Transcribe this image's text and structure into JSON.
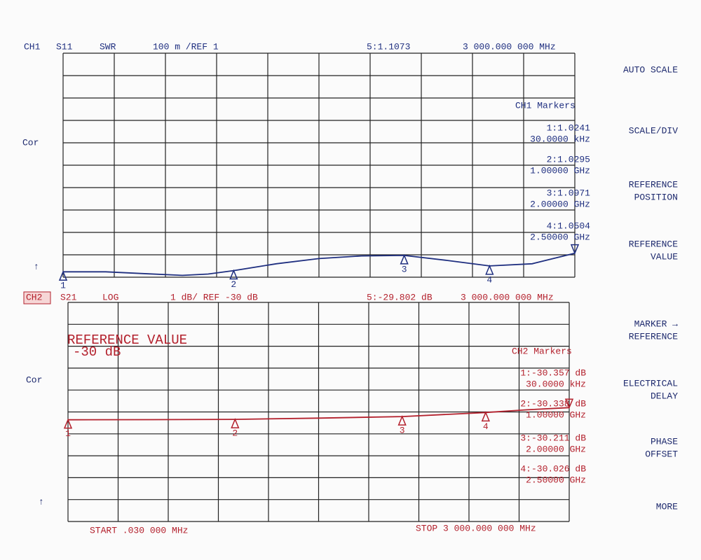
{
  "softkeys": [
    [
      "AUTO SCALE"
    ],
    [
      "SCALE/DIV"
    ],
    [
      "REFERENCE",
      "POSITION"
    ],
    [
      "REFERENCE",
      "VALUE"
    ],
    [
      "MARKER →",
      "REFERENCE"
    ],
    [
      "ELECTRICAL",
      "DELAY"
    ],
    [
      "PHASE",
      "OFFSET"
    ],
    [
      "MORE"
    ]
  ],
  "channels": [
    {
      "channel": "CH1",
      "parameter": "S11",
      "format": "SWR",
      "scale": "100 m /REF 1",
      "status": "Cor",
      "pointer": "↑",
      "active_marker": {
        "label": "5:1.1073",
        "value": 1.1073,
        "freq": 3000,
        "freq_label": "3 000.000 000 MHz"
      },
      "markers_title": "CH1 Markers",
      "markers": [
        {
          "id": "1",
          "label": "1:1.0241",
          "value": 1.0241,
          "freq": 0.03,
          "freq_label": "30.0000 kHz"
        },
        {
          "id": "2",
          "label": "2:1.0295",
          "value": 1.0295,
          "freq": 1000,
          "freq_label": "1.00000 GHz"
        },
        {
          "id": "3",
          "label": "3:1.0971",
          "value": 1.0971,
          "freq": 2000,
          "freq_label": "2.00000 GHz"
        },
        {
          "id": "4",
          "label": "4:1.0504",
          "value": 1.0504,
          "freq": 2500,
          "freq_label": "2.50000 GHz"
        }
      ],
      "xlim": [
        0.03,
        3000
      ],
      "ylim": [
        1.0,
        2.0
      ],
      "trace": {
        "x": [
          0.03,
          250,
          500,
          700,
          850,
          1000,
          1250,
          1500,
          1750,
          2000,
          2250,
          2500,
          2750,
          3000
        ],
        "y": [
          1.0241,
          1.024,
          1.015,
          1.008,
          1.014,
          1.0295,
          1.06,
          1.083,
          1.095,
          1.0971,
          1.075,
          1.0504,
          1.06,
          1.1073
        ]
      }
    },
    {
      "channel": "CH2",
      "parameter": "S21",
      "format": "LOG",
      "scale": "1 dB/ REF -30 dB",
      "status": "Cor",
      "pointer": "↑",
      "annotation": [
        "REFERENCE VALUE",
        "-30 dB"
      ],
      "active_marker": {
        "label": "5:-29.802 dB",
        "value": -29.802,
        "freq": 3000,
        "freq_label": "3 000.000 000 MHz"
      },
      "markers_title": "CH2 Markers",
      "markers": [
        {
          "id": "1",
          "label": "1:-30.357 dB",
          "value": -30.357,
          "freq": 0.03,
          "freq_label": "30.0000 kHz"
        },
        {
          "id": "2",
          "label": "2:-30.338 dB",
          "value": -30.338,
          "freq": 1000,
          "freq_label": "1.00000 GHz"
        },
        {
          "id": "3",
          "label": "3:-30.211 dB",
          "value": -30.211,
          "freq": 2000,
          "freq_label": "2.00000 GHz"
        },
        {
          "id": "4",
          "label": "4:-30.026 dB",
          "value": -30.026,
          "freq": 2500,
          "freq_label": "2.50000 GHz"
        }
      ],
      "xlim": [
        0.03,
        3000
      ],
      "ylim": [
        -35,
        -25
      ],
      "trace": {
        "x": [
          0.03,
          500,
          1000,
          1500,
          2000,
          2500,
          2750,
          3000
        ],
        "y": [
          -30.357,
          -30.35,
          -30.338,
          -30.28,
          -30.211,
          -30.026,
          -29.9,
          -29.802
        ]
      }
    }
  ],
  "footer": {
    "start": "START .030 000 MHz",
    "stop": "STOP 3 000.000 000 MHz"
  }
}
